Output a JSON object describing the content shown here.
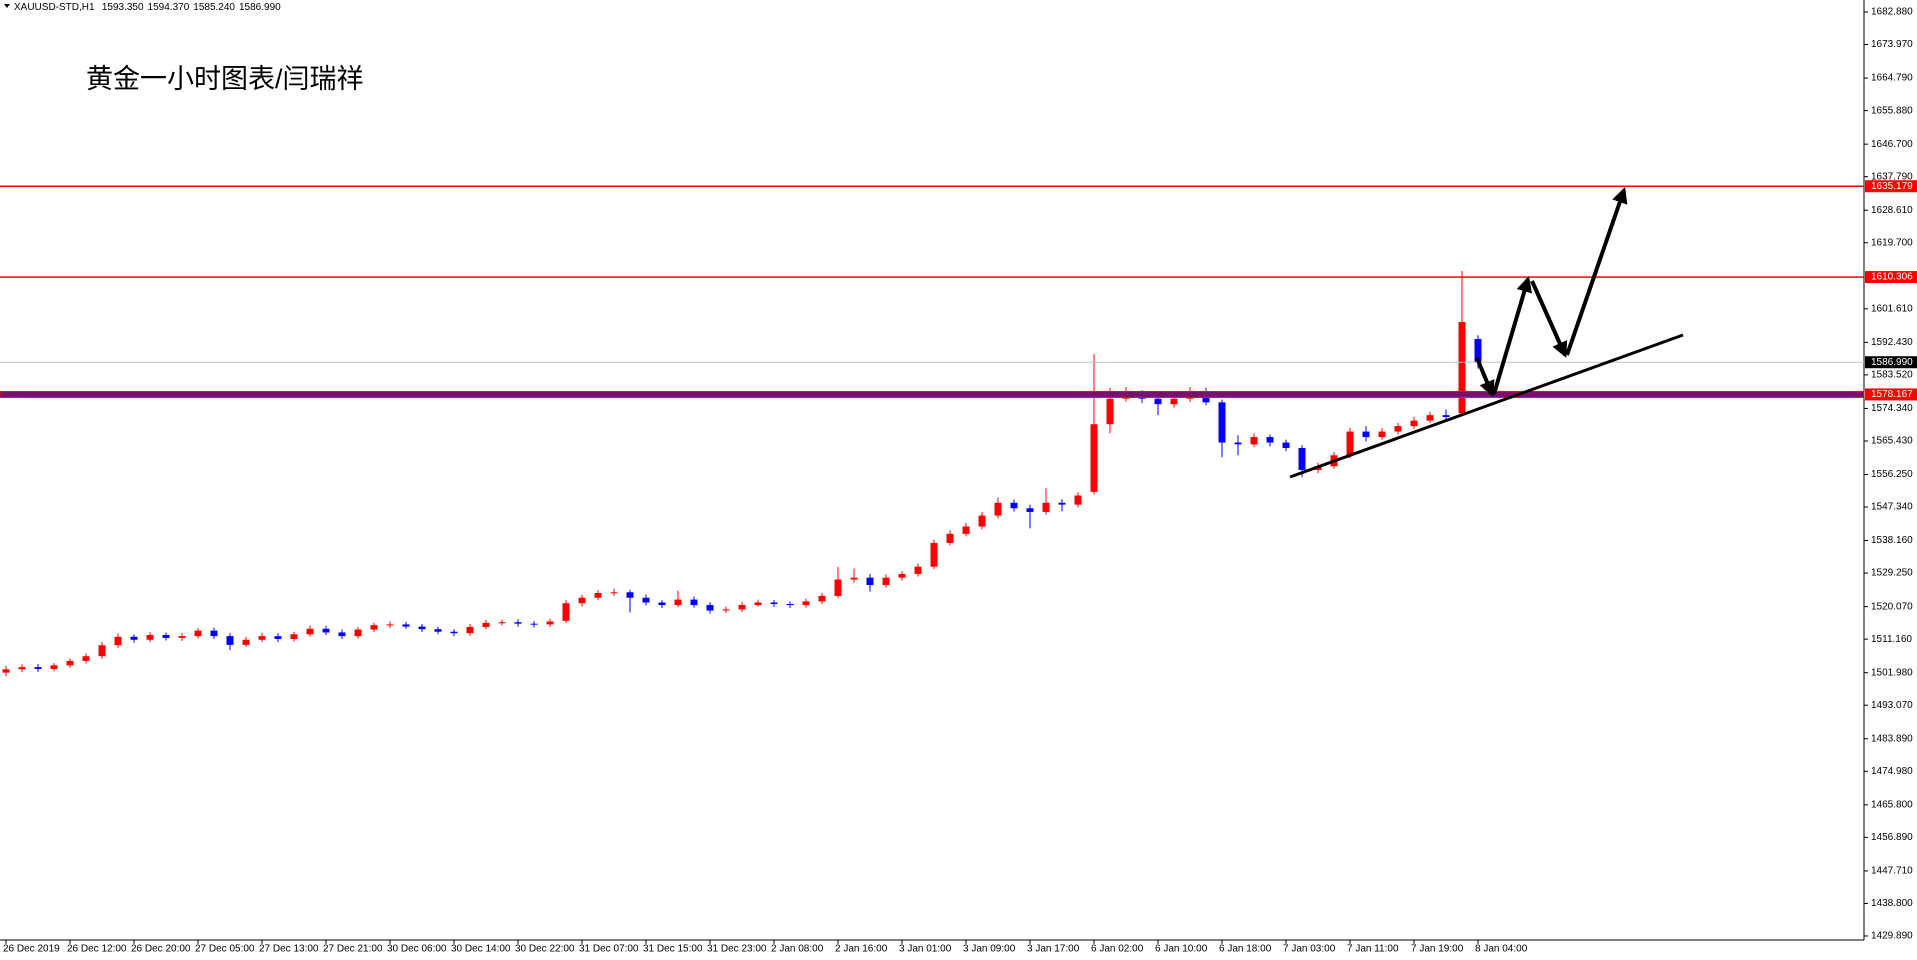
{
  "chart_data": {
    "type": "candlestick",
    "symbol": "XAUUSD-STD,H1",
    "header_values": [
      "1593.350",
      "1594.370",
      "1585.240",
      "1586.990"
    ],
    "title": "黄金一小时图表/闫瑞祥",
    "up_color": "#ff0000",
    "down_color": "#0000ff",
    "categories": [
      "26 Dec 2019",
      null,
      null,
      null,
      "26 Dec 12:00",
      null,
      null,
      null,
      "26 Dec 20:00",
      null,
      null,
      null,
      "27 Dec 05:00",
      null,
      null,
      null,
      "27 Dec 13:00",
      null,
      null,
      null,
      "27 Dec 21:00",
      null,
      null,
      null,
      "30 Dec 06:00",
      null,
      null,
      null,
      "30 Dec 14:00",
      null,
      null,
      null,
      "30 Dec 22:00",
      null,
      null,
      null,
      "31 Dec 07:00",
      null,
      null,
      null,
      "31 Dec 15:00",
      null,
      null,
      null,
      "31 Dec 23:00",
      null,
      null,
      null,
      "2 Jan 08:00",
      null,
      null,
      null,
      "2 Jan 16:00",
      null,
      null,
      null,
      "3 Jan 01:00",
      null,
      null,
      null,
      "3 Jan 09:00",
      null,
      null,
      null,
      "3 Jan 17:00",
      null,
      null,
      null,
      "6 Jan 02:00",
      null,
      null,
      null,
      "6 Jan 10:00",
      null,
      null,
      null,
      "6 Jan 18:00",
      null,
      null,
      null,
      "7 Jan 03:00",
      null,
      null,
      null,
      "7 Jan 11:00",
      null,
      null,
      null,
      "7 Jan 19:00",
      null,
      null,
      null,
      "8 Jan 04:00"
    ],
    "open": [
      1502.0,
      1502.9,
      1503.5,
      1503.0,
      1504.0,
      1505.2,
      1506.5,
      1509.5,
      1511.8,
      1511.0,
      1512.3,
      1511.5,
      1512.0,
      1513.5,
      1512.0,
      1509.6,
      1511.0,
      1512.0,
      1511.2,
      1512.5,
      1514.0,
      1513.0,
      1512.0,
      1513.8,
      1515.0,
      1515.2,
      1514.6,
      1513.9,
      1513.2,
      1512.8,
      1514.5,
      1515.6,
      1515.8,
      1515.4,
      1515.2,
      1516.2,
      1521.0,
      1522.5,
      1523.8,
      1524.0,
      1522.5,
      1521.2,
      1520.5,
      1522.0,
      1520.5,
      1519.0,
      1519.3,
      1520.5,
      1521.2,
      1520.8,
      1520.5,
      1521.5,
      1523.0,
      1527.5,
      1528.0,
      1526.0,
      1528.0,
      1529.0,
      1531.0,
      1537.5,
      1540.0,
      1542.0,
      1545.0,
      1548.5,
      1547.0,
      1546.0,
      1548.5,
      1548.0,
      1551.5,
      1570.0,
      1577.0,
      1578.5,
      1577.0,
      1575.5,
      1577.0,
      1579.0,
      1576.0,
      1565.0,
      1564.5,
      1566.5,
      1565.0,
      1563.5,
      1557.5,
      1558.5,
      1561.5,
      1568.0,
      1566.5,
      1568.0,
      1569.5,
      1571.0,
      1572.5,
      1573.0,
      1593.35
    ],
    "high": [
      1503.8,
      1504.3,
      1504.4,
      1504.6,
      1505.9,
      1507.3,
      1510.4,
      1512.7,
      1512.5,
      1513.1,
      1513.0,
      1512.8,
      1514.2,
      1514.3,
      1512.8,
      1511.8,
      1512.9,
      1512.8,
      1513.2,
      1514.9,
      1514.8,
      1513.8,
      1514.5,
      1515.7,
      1516.0,
      1515.9,
      1515.3,
      1514.6,
      1513.9,
      1515.3,
      1516.4,
      1516.5,
      1516.6,
      1516.1,
      1516.8,
      1521.8,
      1523.3,
      1524.6,
      1525.0,
      1524.7,
      1523.4,
      1521.9,
      1524.5,
      1522.8,
      1521.3,
      1520.1,
      1521.3,
      1522.0,
      1521.9,
      1521.5,
      1522.3,
      1523.8,
      1531.0,
      1530.5,
      1529.0,
      1528.9,
      1529.8,
      1531.9,
      1538.4,
      1541.0,
      1543.0,
      1546.0,
      1550.0,
      1549.4,
      1548.0,
      1552.5,
      1549.5,
      1551.4,
      1589.2,
      1580.0,
      1580.2,
      1579.3,
      1578.2,
      1578.0,
      1580.2,
      1580.0,
      1576.8,
      1567.0,
      1567.5,
      1567.2,
      1565.8,
      1564.3,
      1559.5,
      1562.4,
      1569.0,
      1569.5,
      1568.9,
      1570.4,
      1572.0,
      1573.4,
      1574.0,
      1612.0,
      1594.37
    ],
    "low": [
      1501.0,
      1502.1,
      1502.2,
      1502.4,
      1503.3,
      1504.5,
      1505.8,
      1508.8,
      1510.2,
      1510.3,
      1510.8,
      1510.7,
      1511.3,
      1511.2,
      1508.2,
      1509.0,
      1510.4,
      1510.4,
      1510.5,
      1511.9,
      1512.3,
      1511.2,
      1511.3,
      1513.1,
      1514.2,
      1514.0,
      1513.1,
      1512.5,
      1512.0,
      1512.1,
      1513.8,
      1514.9,
      1514.6,
      1514.4,
      1514.5,
      1515.6,
      1520.1,
      1521.8,
      1523.0,
      1518.5,
      1520.4,
      1519.7,
      1519.9,
      1519.8,
      1518.2,
      1518.3,
      1518.6,
      1520.1,
      1520.0,
      1519.7,
      1519.8,
      1520.8,
      1522.4,
      1526.6,
      1524.2,
      1525.3,
      1527.2,
      1528.3,
      1530.3,
      1536.8,
      1539.3,
      1541.2,
      1544.2,
      1546.1,
      1541.5,
      1545.2,
      1546.2,
      1547.2,
      1550.8,
      1567.5,
      1576.2,
      1575.8,
      1572.5,
      1574.6,
      1576.1,
      1575.2,
      1561.0,
      1561.5,
      1563.8,
      1563.9,
      1562.6,
      1555.5,
      1556.6,
      1557.8,
      1560.7,
      1565.3,
      1565.8,
      1567.2,
      1568.7,
      1570.4,
      1571.2,
      1572.2,
      1585.24
    ],
    "close": [
      1502.9,
      1503.5,
      1503.0,
      1504.0,
      1505.2,
      1506.5,
      1509.5,
      1511.8,
      1511.0,
      1512.3,
      1511.5,
      1512.0,
      1513.5,
      1512.0,
      1509.6,
      1511.0,
      1512.0,
      1511.2,
      1512.5,
      1514.0,
      1513.0,
      1512.0,
      1513.8,
      1515.0,
      1515.2,
      1514.6,
      1513.9,
      1513.2,
      1512.8,
      1514.5,
      1515.6,
      1515.8,
      1515.4,
      1515.2,
      1516.0,
      1521.0,
      1522.5,
      1523.8,
      1524.0,
      1522.5,
      1521.2,
      1520.5,
      1522.0,
      1520.5,
      1519.0,
      1519.3,
      1520.5,
      1521.2,
      1520.8,
      1520.5,
      1521.5,
      1523.0,
      1527.5,
      1528.0,
      1526.0,
      1528.0,
      1529.0,
      1531.0,
      1537.5,
      1540.0,
      1542.0,
      1545.0,
      1548.5,
      1547.0,
      1546.0,
      1548.5,
      1548.0,
      1550.5,
      1570.0,
      1577.0,
      1578.5,
      1577.0,
      1575.5,
      1577.0,
      1579.0,
      1576.0,
      1565.0,
      1564.5,
      1566.5,
      1565.0,
      1563.5,
      1557.5,
      1558.5,
      1561.5,
      1568.0,
      1566.5,
      1568.0,
      1569.5,
      1571.0,
      1572.5,
      1572.0,
      1598.0,
      1586.99
    ],
    "ylim": [
      1428.79,
      1686.17
    ],
    "yticks": [
      {
        "value": 1682.88,
        "label": "1682.880"
      },
      {
        "value": 1673.97,
        "label": "1673.970"
      },
      {
        "value": 1664.79,
        "label": "1664.790"
      },
      {
        "value": 1655.88,
        "label": "1655.880"
      },
      {
        "value": 1646.7,
        "label": "1646.700"
      },
      {
        "value": 1637.79,
        "label": "1637.790"
      },
      {
        "value": 1628.61,
        "label": "1628.610"
      },
      {
        "value": 1619.7,
        "label": "1619.700"
      },
      {
        "value": 1601.61,
        "label": "1601.610"
      },
      {
        "value": 1592.43,
        "label": "1592.430"
      },
      {
        "value": 1583.52,
        "label": "1583.520"
      },
      {
        "value": 1574.34,
        "label": "1574.340"
      },
      {
        "value": 1565.43,
        "label": "1565.430"
      },
      {
        "value": 1556.25,
        "label": "1556.250"
      },
      {
        "value": 1547.34,
        "label": "1547.340"
      },
      {
        "value": 1538.16,
        "label": "1538.160"
      },
      {
        "value": 1529.25,
        "label": "1529.250"
      },
      {
        "value": 1520.07,
        "label": "1520.070"
      },
      {
        "value": 1511.16,
        "label": "1511.160"
      },
      {
        "value": 1501.98,
        "label": "1501.980"
      },
      {
        "value": 1493.07,
        "label": "1493.070"
      },
      {
        "value": 1483.89,
        "label": "1483.890"
      },
      {
        "value": 1474.98,
        "label": "1474.980"
      },
      {
        "value": 1465.8,
        "label": "1465.800"
      },
      {
        "value": 1456.89,
        "label": "1456.890"
      },
      {
        "value": 1447.71,
        "label": "1447.710"
      },
      {
        "value": 1438.8,
        "label": "1438.800"
      },
      {
        "value": 1429.89,
        "label": "1429.890"
      }
    ],
    "levels": [
      {
        "value": 1635.179,
        "label": "1635.179",
        "color": "#ff0000",
        "label_bg": "#ff0000"
      },
      {
        "value": 1610.306,
        "label": "1610.306",
        "color": "#ff0000",
        "label_bg": "#ff0000"
      },
      {
        "value": 1586.99,
        "label": "1586.990",
        "color": "#c0c0c0",
        "label_bg": "#000000"
      },
      {
        "value": 1578.167,
        "label": "1578.167",
        "color": "#7a0f6e",
        "outline": "#ff0000",
        "label_bg": "#ff0000"
      }
    ]
  }
}
